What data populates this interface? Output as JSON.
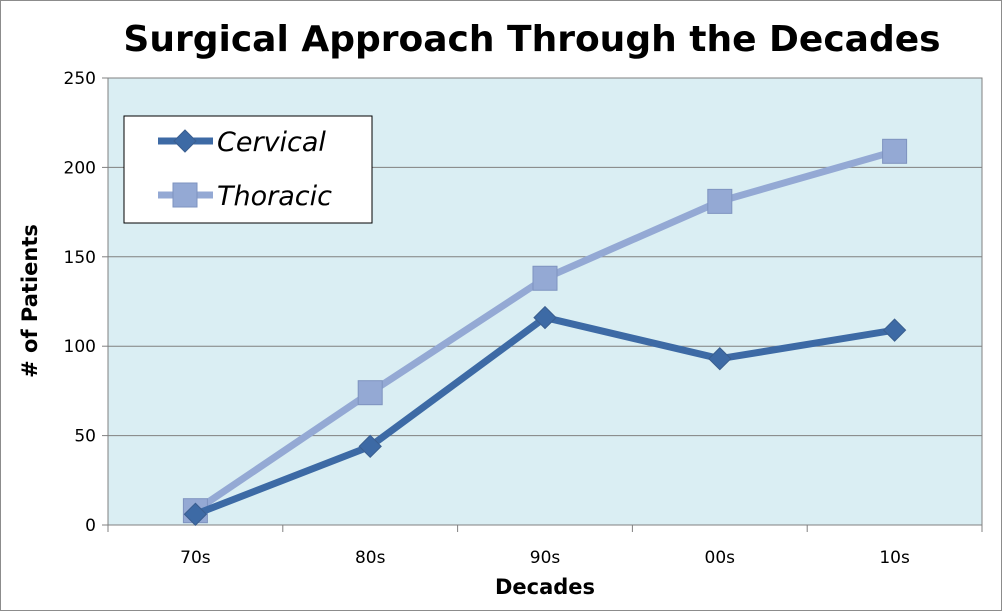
{
  "chart_data": {
    "type": "line",
    "title": "Surgical Approach Through the Decades",
    "xlabel": "Decades",
    "ylabel": "# of Patients",
    "categories": [
      "70s",
      "80s",
      "90s",
      "00s",
      "10s"
    ],
    "ylim": [
      0,
      250
    ],
    "yticks": [
      0,
      50,
      100,
      150,
      200,
      250
    ],
    "grid": true,
    "legend": "top-left",
    "series": [
      {
        "name": "Cervical",
        "values": [
          6,
          44,
          116,
          93,
          109
        ],
        "color": "#3d6aa5",
        "marker": "diamond"
      },
      {
        "name": "Thoracic",
        "values": [
          8,
          74,
          138,
          181,
          209
        ],
        "color": "#94a9d4",
        "marker": "square"
      }
    ],
    "plot_background": "#daeef3"
  }
}
